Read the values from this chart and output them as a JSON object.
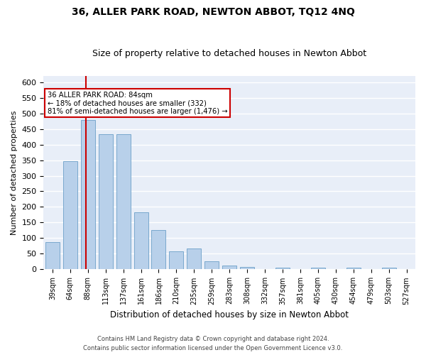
{
  "title": "36, ALLER PARK ROAD, NEWTON ABBOT, TQ12 4NQ",
  "subtitle": "Size of property relative to detached houses in Newton Abbot",
  "xlabel": "Distribution of detached houses by size in Newton Abbot",
  "ylabel": "Number of detached properties",
  "categories": [
    "39sqm",
    "64sqm",
    "88sqm",
    "113sqm",
    "137sqm",
    "161sqm",
    "186sqm",
    "210sqm",
    "235sqm",
    "259sqm",
    "283sqm",
    "308sqm",
    "332sqm",
    "357sqm",
    "381sqm",
    "405sqm",
    "430sqm",
    "454sqm",
    "479sqm",
    "503sqm",
    "527sqm"
  ],
  "values": [
    88,
    347,
    478,
    433,
    433,
    182,
    125,
    57,
    68,
    25,
    13,
    8,
    2,
    5,
    0,
    5,
    0,
    5,
    0,
    5,
    0
  ],
  "bar_color": "#b8d0ea",
  "bar_edge_color": "#6b9fc8",
  "background_color": "#e8eef8",
  "grid_color": "#ffffff",
  "annotation_line1": "36 ALLER PARK ROAD: 84sqm",
  "annotation_line2": "← 18% of detached houses are smaller (332)",
  "annotation_line3": "81% of semi-detached houses are larger (1,476) →",
  "annotation_box_color": "#ffffff",
  "annotation_box_edge": "#cc0000",
  "footer1": "Contains HM Land Registry data © Crown copyright and database right 2024.",
  "footer2": "Contains public sector information licensed under the Open Government Licence v3.0.",
  "ylim": [
    0,
    620
  ],
  "yticks": [
    0,
    50,
    100,
    150,
    200,
    250,
    300,
    350,
    400,
    450,
    500,
    550,
    600
  ],
  "red_line_x": 1.88,
  "title_fontsize": 10,
  "subtitle_fontsize": 9,
  "axis_label_fontsize": 8,
  "tick_fontsize": 8,
  "footer_fontsize": 6
}
